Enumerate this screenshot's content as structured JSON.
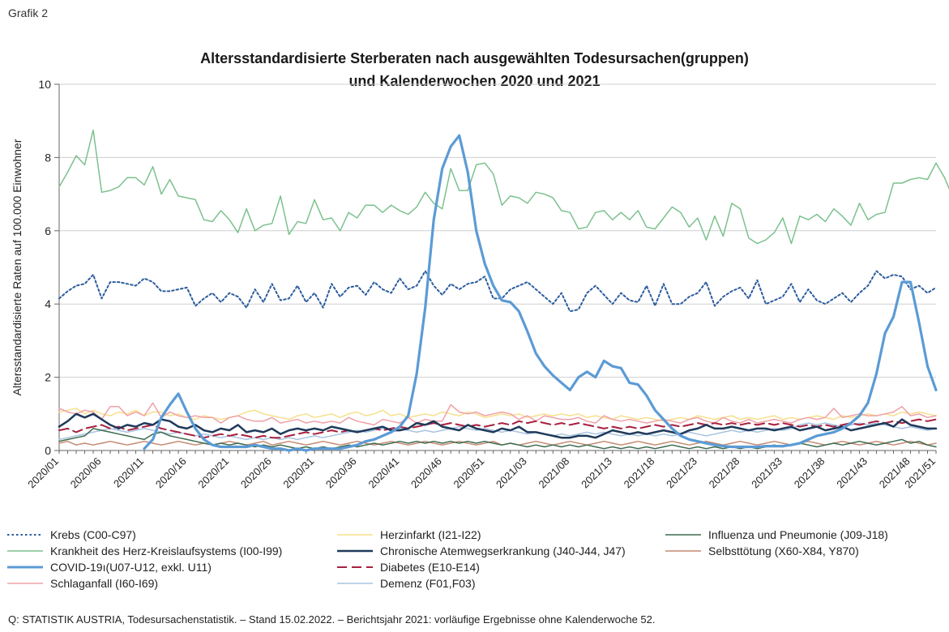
{
  "header": {
    "grafik_label": "Grafik 2"
  },
  "footer": {
    "source": "Q: STATISTIK AUSTRIA, Todesursachenstatistik. – Stand 15.02.2022. – Berichtsjahr 2021: vorläufige Ergebnisse ohne Kalenderwoche 52."
  },
  "chart_data": {
    "type": "line",
    "title": "Altersstandardisierte Sterberaten nach ausgewählten Todesursachen(gruppen)",
    "subtitle": "und Kalenderwochen 2020 und 2021",
    "ylabel": "Altersstandardisierte Raten auf 100.000 Einwohner",
    "xlabel": "",
    "ylim": [
      0,
      10
    ],
    "yticks": [
      0,
      2,
      4,
      6,
      8,
      10
    ],
    "grid": "horizontal",
    "legend_position": "bottom",
    "xtick_labels": [
      "2020/01",
      "2020/06",
      "2020/11",
      "2020/16",
      "2020/21",
      "2020/26",
      "2020/31",
      "2020/36",
      "2020/41",
      "2020/46",
      "2020/51",
      "2021/03",
      "2021/08",
      "2021/13",
      "2021/18",
      "2021/23",
      "2021/28",
      "2021/33",
      "2021/38",
      "2021/43",
      "2021/48",
      "2021/51"
    ],
    "xtick_index": [
      0,
      5,
      10,
      15,
      20,
      25,
      30,
      35,
      40,
      45,
      50,
      55,
      60,
      65,
      70,
      75,
      80,
      85,
      90,
      95,
      100,
      103
    ],
    "n_points": 104,
    "series": [
      {
        "name": "Krebs (C00-C97)",
        "color": "#2b5c9e",
        "style": "dotted",
        "width": 2,
        "values": [
          4.15,
          4.35,
          4.5,
          4.55,
          4.8,
          4.15,
          4.6,
          4.6,
          4.55,
          4.5,
          4.7,
          4.6,
          4.35,
          4.35,
          4.4,
          4.45,
          3.95,
          4.15,
          4.3,
          4.05,
          4.3,
          4.2,
          3.9,
          4.4,
          4.05,
          4.55,
          4.1,
          4.15,
          4.5,
          4.05,
          4.3,
          3.9,
          4.55,
          4.2,
          4.45,
          4.5,
          4.25,
          4.6,
          4.4,
          4.3,
          4.7,
          4.4,
          4.5,
          4.9,
          4.5,
          4.25,
          4.55,
          4.4,
          4.55,
          4.6,
          4.75,
          4.15,
          4.15,
          4.4,
          4.5,
          4.6,
          4.4,
          4.2,
          4.0,
          4.3,
          3.8,
          3.85,
          4.3,
          4.5,
          4.25,
          4.0,
          4.3,
          4.1,
          4.05,
          4.5,
          3.95,
          4.55,
          4.0,
          4.0,
          4.2,
          4.3,
          4.6,
          3.95,
          4.2,
          4.35,
          4.45,
          4.15,
          4.65,
          4.0,
          4.1,
          4.2,
          4.55,
          4.05,
          4.4,
          4.1,
          4.0,
          4.15,
          4.3,
          4.05,
          4.3,
          4.5,
          4.9,
          4.7,
          4.8,
          4.75,
          4.4,
          4.5,
          4.3,
          4.45
        ]
      },
      {
        "name": "Krankheit des Herz-Kreislaufsystems (I00-I99)",
        "color": "#7cc18e",
        "style": "solid",
        "width": 1.5,
        "values": [
          7.2,
          7.6,
          8.05,
          7.8,
          8.75,
          7.05,
          7.1,
          7.2,
          7.45,
          7.45,
          7.25,
          7.75,
          7.0,
          7.4,
          6.95,
          6.9,
          6.85,
          6.3,
          6.25,
          6.55,
          6.3,
          5.95,
          6.6,
          6.0,
          6.15,
          6.2,
          6.95,
          5.9,
          6.25,
          6.2,
          6.85,
          6.3,
          6.35,
          6.0,
          6.5,
          6.35,
          6.7,
          6.7,
          6.5,
          6.7,
          6.55,
          6.45,
          6.65,
          7.05,
          6.75,
          6.6,
          7.7,
          7.1,
          7.1,
          7.8,
          7.85,
          7.55,
          6.7,
          6.95,
          6.9,
          6.75,
          7.05,
          7.0,
          6.9,
          6.55,
          6.5,
          6.05,
          6.1,
          6.5,
          6.55,
          6.3,
          6.5,
          6.3,
          6.55,
          6.1,
          6.05,
          6.35,
          6.65,
          6.5,
          6.1,
          6.35,
          5.75,
          6.4,
          5.85,
          6.75,
          6.6,
          5.8,
          5.65,
          5.75,
          5.95,
          6.35,
          5.65,
          6.4,
          6.3,
          6.45,
          6.25,
          6.6,
          6.4,
          6.15,
          6.75,
          6.3,
          6.45,
          6.5,
          7.3,
          7.3,
          7.4,
          7.45,
          7.4,
          7.85,
          7.45,
          6.9,
          7.05
        ]
      },
      {
        "name": "COVID-19ı(U07-U12, exkl. U11)",
        "color": "#5b9bd5",
        "style": "solid",
        "width": 3.2,
        "values": [
          null,
          null,
          null,
          null,
          null,
          null,
          null,
          null,
          null,
          null,
          0.05,
          0.3,
          0.9,
          1.25,
          1.55,
          1.05,
          0.6,
          0.3,
          0.15,
          0.1,
          0.1,
          0.1,
          0.1,
          0.15,
          0.1,
          0.05,
          0.05,
          0.0,
          0.05,
          0.0,
          0.05,
          0.05,
          0.05,
          0.05,
          0.1,
          0.15,
          0.25,
          0.3,
          0.4,
          0.5,
          0.65,
          0.95,
          2.1,
          3.9,
          6.3,
          7.7,
          8.3,
          8.6,
          7.6,
          6.0,
          5.1,
          4.5,
          4.1,
          4.05,
          3.8,
          3.25,
          2.65,
          2.3,
          2.05,
          1.85,
          1.65,
          2.0,
          2.15,
          2.0,
          2.45,
          2.3,
          2.25,
          1.85,
          1.8,
          1.5,
          1.1,
          0.85,
          0.6,
          0.4,
          0.3,
          0.25,
          0.2,
          0.15,
          0.12,
          0.1,
          0.1,
          0.1,
          0.1,
          0.12,
          0.12,
          0.12,
          0.15,
          0.2,
          0.3,
          0.4,
          0.45,
          0.5,
          0.6,
          0.75,
          0.95,
          1.3,
          2.1,
          3.2,
          3.65,
          4.6,
          4.6,
          3.5,
          2.3,
          1.65
        ]
      },
      {
        "name": "Schlaganfall (I60-I69)",
        "color": "#f0a0a8",
        "style": "solid",
        "width": 1.5,
        "values": [
          1.15,
          1.05,
          1.0,
          1.1,
          1.05,
          0.85,
          1.2,
          1.2,
          0.95,
          1.05,
          0.95,
          1.3,
          0.9,
          1.05,
          0.95,
          0.9,
          0.95,
          0.9,
          0.9,
          0.75,
          0.9,
          0.95,
          0.85,
          0.8,
          0.8,
          0.9,
          0.75,
          0.8,
          0.85,
          0.75,
          0.8,
          0.75,
          0.8,
          0.75,
          0.9,
          0.8,
          0.75,
          0.7,
          0.85,
          0.8,
          0.75,
          0.9,
          0.75,
          0.85,
          0.8,
          0.8,
          1.25,
          1.05,
          1.0,
          1.05,
          0.95,
          1.0,
          1.05,
          1.0,
          0.85,
          0.95,
          0.8,
          0.95,
          0.9,
          0.85,
          0.85,
          0.9,
          0.8,
          0.75,
          0.95,
          0.85,
          0.8,
          0.85,
          0.8,
          0.75,
          0.8,
          0.85,
          0.8,
          0.75,
          0.85,
          0.9,
          0.8,
          0.75,
          0.9,
          0.8,
          0.75,
          0.85,
          0.75,
          0.8,
          0.85,
          0.8,
          0.75,
          0.85,
          0.9,
          0.85,
          0.9,
          1.15,
          0.9,
          0.95,
          1.0,
          0.95,
          0.95,
          1.0,
          1.05,
          1.2,
          0.95,
          1.0,
          0.9,
          0.95
        ]
      },
      {
        "name": "Herzinfarkt (I21-I22)",
        "color": "#f5e08a",
        "style": "solid",
        "width": 1.5,
        "values": [
          1.05,
          1.1,
          1.15,
          1.0,
          1.1,
          1.0,
          0.95,
          1.05,
          1.0,
          1.1,
          0.95,
          1.05,
          1.05,
          0.95,
          1.0,
          0.9,
          0.85,
          0.95,
          0.9,
          0.85,
          0.9,
          0.95,
          1.05,
          1.1,
          1.0,
          0.95,
          0.9,
          0.85,
          0.95,
          1.0,
          0.9,
          0.95,
          1.0,
          0.9,
          1.0,
          1.05,
          0.95,
          1.0,
          1.1,
          0.95,
          1.0,
          0.9,
          0.95,
          1.0,
          0.95,
          1.05,
          1.0,
          0.95,
          1.05,
          1.0,
          0.9,
          0.95,
          1.0,
          0.95,
          1.0,
          0.9,
          0.95,
          1.0,
          0.95,
          1.0,
          0.95,
          1.0,
          0.9,
          0.95,
          0.9,
          0.85,
          0.95,
          0.9,
          0.85,
          0.9,
          0.85,
          0.8,
          0.85,
          0.9,
          0.85,
          0.95,
          0.9,
          0.85,
          0.9,
          0.95,
          0.85,
          0.9,
          0.85,
          0.9,
          0.95,
          0.85,
          0.9,
          0.85,
          0.9,
          0.95,
          0.9,
          0.85,
          0.95,
          0.9,
          0.95,
          1.0,
          0.95,
          1.0,
          0.95,
          1.05,
          1.0,
          1.05,
          1.0,
          0.95
        ]
      },
      {
        "name": "Chronische Atemwegserkrankung (J40-J44, J47)",
        "color": "#1f3a5a",
        "style": "solid",
        "width": 2.5,
        "values": [
          0.65,
          0.8,
          1.0,
          0.9,
          1.0,
          0.85,
          0.7,
          0.6,
          0.7,
          0.65,
          0.75,
          0.7,
          0.85,
          0.8,
          0.65,
          0.6,
          0.7,
          0.55,
          0.5,
          0.6,
          0.55,
          0.7,
          0.5,
          0.55,
          0.5,
          0.6,
          0.45,
          0.55,
          0.6,
          0.55,
          0.6,
          0.55,
          0.65,
          0.6,
          0.55,
          0.5,
          0.55,
          0.6,
          0.65,
          0.55,
          0.55,
          0.6,
          0.75,
          0.7,
          0.8,
          0.65,
          0.6,
          0.55,
          0.7,
          0.6,
          0.55,
          0.5,
          0.6,
          0.55,
          0.65,
          0.5,
          0.5,
          0.45,
          0.4,
          0.35,
          0.35,
          0.4,
          0.4,
          0.35,
          0.45,
          0.55,
          0.5,
          0.45,
          0.5,
          0.45,
          0.5,
          0.55,
          0.5,
          0.45,
          0.55,
          0.6,
          0.7,
          0.6,
          0.6,
          0.65,
          0.6,
          0.55,
          0.6,
          0.6,
          0.55,
          0.6,
          0.65,
          0.55,
          0.6,
          0.65,
          0.55,
          0.6,
          0.65,
          0.55,
          0.6,
          0.65,
          0.7,
          0.75,
          0.65,
          0.85,
          0.7,
          0.65,
          0.6,
          0.6
        ]
      },
      {
        "name": "Diabetes (E10-E14)",
        "color": "#a8203f",
        "style": "dashed",
        "width": 2,
        "values": [
          0.55,
          0.6,
          0.5,
          0.6,
          0.65,
          0.7,
          0.6,
          0.65,
          0.55,
          0.6,
          0.65,
          0.7,
          0.6,
          0.55,
          0.5,
          0.45,
          0.4,
          0.35,
          0.4,
          0.45,
          0.4,
          0.45,
          0.4,
          0.35,
          0.4,
          0.35,
          0.35,
          0.4,
          0.45,
          0.5,
          0.45,
          0.5,
          0.55,
          0.5,
          0.55,
          0.5,
          0.55,
          0.6,
          0.55,
          0.6,
          0.65,
          0.6,
          0.65,
          0.7,
          0.75,
          0.7,
          0.75,
          0.7,
          0.65,
          0.7,
          0.65,
          0.7,
          0.75,
          0.7,
          0.8,
          0.75,
          0.8,
          0.75,
          0.7,
          0.75,
          0.7,
          0.75,
          0.7,
          0.65,
          0.6,
          0.65,
          0.6,
          0.65,
          0.6,
          0.65,
          0.7,
          0.65,
          0.7,
          0.65,
          0.7,
          0.75,
          0.7,
          0.75,
          0.7,
          0.75,
          0.7,
          0.75,
          0.7,
          0.75,
          0.7,
          0.75,
          0.7,
          0.65,
          0.7,
          0.65,
          0.7,
          0.65,
          0.7,
          0.75,
          0.7,
          0.75,
          0.8,
          0.75,
          0.8,
          0.75,
          0.8,
          0.85,
          0.8,
          0.85
        ]
      },
      {
        "name": "Demenz (F01,F03)",
        "color": "#a8c4e0",
        "style": "solid",
        "width": 1.5,
        "values": [
          0.3,
          0.35,
          0.4,
          0.45,
          0.5,
          0.55,
          0.6,
          0.55,
          0.5,
          0.55,
          0.6,
          0.55,
          0.5,
          0.45,
          0.5,
          0.45,
          0.4,
          0.45,
          0.4,
          0.35,
          0.4,
          0.35,
          0.3,
          0.35,
          0.3,
          0.35,
          0.3,
          0.35,
          0.3,
          0.35,
          0.4,
          0.35,
          0.4,
          0.45,
          0.5,
          0.55,
          0.5,
          0.55,
          0.6,
          0.55,
          0.6,
          0.55,
          0.5,
          0.55,
          0.5,
          0.55,
          0.6,
          0.65,
          0.6,
          0.55,
          0.6,
          0.55,
          0.5,
          0.55,
          0.5,
          0.45,
          0.5,
          0.45,
          0.4,
          0.45,
          0.4,
          0.45,
          0.5,
          0.45,
          0.5,
          0.45,
          0.4,
          0.45,
          0.4,
          0.45,
          0.4,
          0.45,
          0.4,
          0.45,
          0.5,
          0.45,
          0.4,
          0.45,
          0.5,
          0.55,
          0.5,
          0.55,
          0.5,
          0.55,
          0.6,
          0.55,
          0.6,
          0.7,
          0.75,
          0.7,
          0.75,
          0.7,
          0.65,
          0.7,
          0.75,
          0.7,
          0.75,
          0.7,
          0.65,
          0.6,
          0.65,
          0.6,
          0.55,
          0.6
        ]
      },
      {
        "name": "Influenza und Pneumonie (J09-J18)",
        "color": "#3d6b4f",
        "style": "solid",
        "width": 1.5,
        "values": [
          0.25,
          0.3,
          0.35,
          0.4,
          0.6,
          0.55,
          0.5,
          0.45,
          0.4,
          0.35,
          0.3,
          0.45,
          0.5,
          0.4,
          0.35,
          0.3,
          0.25,
          0.2,
          0.15,
          0.2,
          0.15,
          0.2,
          0.15,
          0.1,
          0.15,
          0.1,
          0.15,
          0.1,
          0.05,
          0.1,
          0.05,
          0.1,
          0.05,
          0.1,
          0.15,
          0.1,
          0.15,
          0.2,
          0.15,
          0.2,
          0.25,
          0.2,
          0.25,
          0.2,
          0.25,
          0.2,
          0.25,
          0.2,
          0.25,
          0.2,
          0.25,
          0.2,
          0.15,
          0.2,
          0.15,
          0.1,
          0.15,
          0.1,
          0.15,
          0.1,
          0.15,
          0.1,
          0.15,
          0.1,
          0.05,
          0.1,
          0.05,
          0.1,
          0.05,
          0.1,
          0.05,
          0.1,
          0.15,
          0.1,
          0.05,
          0.1,
          0.05,
          0.1,
          0.05,
          0.1,
          0.05,
          0.1,
          0.05,
          0.1,
          0.15,
          0.1,
          0.15,
          0.2,
          0.15,
          0.1,
          0.15,
          0.2,
          0.15,
          0.2,
          0.25,
          0.2,
          0.15,
          0.2,
          0.25,
          0.3,
          0.2,
          0.25,
          0.15,
          0.1
        ]
      },
      {
        "name": "Selbsttötung (X60-X84, Y870)",
        "color": "#c48a72",
        "style": "solid",
        "width": 1.5,
        "values": [
          0.2,
          0.25,
          0.15,
          0.2,
          0.15,
          0.2,
          0.25,
          0.2,
          0.15,
          0.2,
          0.25,
          0.2,
          0.15,
          0.2,
          0.25,
          0.2,
          0.15,
          0.2,
          0.15,
          0.2,
          0.25,
          0.2,
          0.15,
          0.2,
          0.25,
          0.15,
          0.2,
          0.25,
          0.2,
          0.15,
          0.2,
          0.25,
          0.2,
          0.15,
          0.2,
          0.25,
          0.2,
          0.15,
          0.2,
          0.25,
          0.2,
          0.15,
          0.2,
          0.25,
          0.2,
          0.15,
          0.2,
          0.25,
          0.2,
          0.15,
          0.2,
          0.25,
          0.15,
          0.2,
          0.15,
          0.2,
          0.25,
          0.2,
          0.15,
          0.2,
          0.25,
          0.2,
          0.15,
          0.2,
          0.25,
          0.2,
          0.15,
          0.2,
          0.25,
          0.2,
          0.15,
          0.2,
          0.25,
          0.2,
          0.15,
          0.2,
          0.25,
          0.2,
          0.15,
          0.2,
          0.25,
          0.2,
          0.15,
          0.2,
          0.25,
          0.2,
          0.15,
          0.2,
          0.25,
          0.2,
          0.15,
          0.2,
          0.25,
          0.2,
          0.15,
          0.2,
          0.25,
          0.2,
          0.15,
          0.2,
          0.25,
          0.2,
          0.15,
          0.2
        ]
      }
    ]
  }
}
